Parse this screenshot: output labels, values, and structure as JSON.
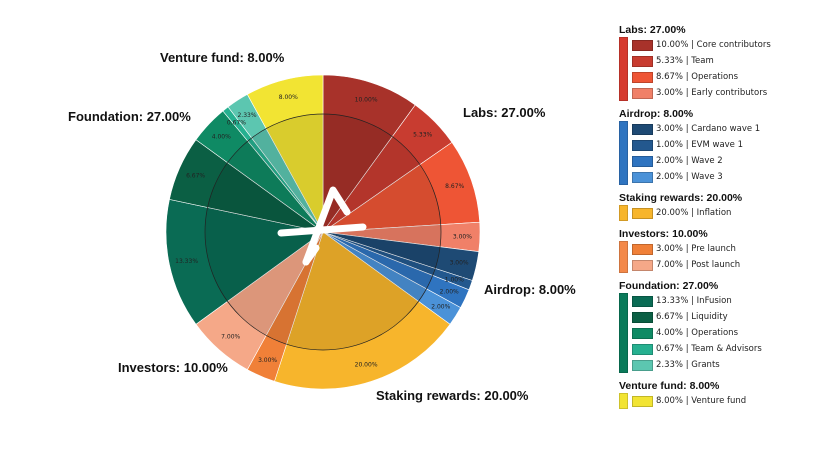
{
  "chart_data": {
    "type": "pie",
    "title": "",
    "groups": [
      {
        "name": "Labs",
        "label": "Labs: 27.00%",
        "value": 27.0,
        "color": "#d63a2f",
        "slices": [
          {
            "value": 10.0,
            "pct": "10.00%",
            "legend": "10.00% | Core contributors",
            "color": "#a8322a"
          },
          {
            "value": 5.33,
            "pct": "5.33%",
            "legend": "5.33% | Team",
            "color": "#c83c30"
          },
          {
            "value": 8.67,
            "pct": "8.67%",
            "legend": "8.67% | Operations",
            "color": "#ee5535"
          },
          {
            "value": 3.0,
            "pct": "3.00%",
            "legend": "3.00% | Early contributors",
            "color": "#f08068"
          }
        ]
      },
      {
        "name": "Airdrop",
        "label": "Airdrop: 8.00%",
        "value": 8.0,
        "color": "#2f74c0",
        "slices": [
          {
            "value": 3.0,
            "pct": "3.00%",
            "legend": "3.00% | Cardano wave 1",
            "color": "#1e4a74"
          },
          {
            "value": 1.0,
            "pct": "1.00%",
            "legend": "1.00% | EVM wave 1",
            "color": "#23588e"
          },
          {
            "value": 2.0,
            "pct": "2.00%",
            "legend": "2.00% | Wave 2",
            "color": "#2f74c0"
          },
          {
            "value": 2.0,
            "pct": "2.00%",
            "legend": "2.00% | Wave 3",
            "color": "#4b92d8"
          }
        ]
      },
      {
        "name": "Staking rewards",
        "label": "Staking rewards: 20.00%",
        "value": 20.0,
        "color": "#f7b52c",
        "slices": [
          {
            "value": 20.0,
            "pct": "20.00%",
            "legend": "20.00% | Inflation",
            "color": "#f7b52c"
          }
        ]
      },
      {
        "name": "Investors",
        "label": "Investors: 10.00%",
        "value": 10.0,
        "color": "#f3894a",
        "slices": [
          {
            "value": 3.0,
            "pct": "3.00%",
            "legend": "3.00% | Pre launch",
            "color": "#f08038"
          },
          {
            "value": 7.0,
            "pct": "7.00%",
            "legend": "7.00% | Post launch",
            "color": "#f5a888"
          }
        ]
      },
      {
        "name": "Foundation",
        "label": "Foundation: 27.00%",
        "value": 27.0,
        "color": "#0a7a5a",
        "slices": [
          {
            "value": 13.33,
            "pct": "13.33%",
            "legend": "13.33% | InFusion",
            "color": "#0a6b54"
          },
          {
            "value": 6.67,
            "pct": "6.67%",
            "legend": "6.67% | Liquidity",
            "color": "#0b5f44"
          },
          {
            "value": 4.0,
            "pct": "4.00%",
            "legend": "4.00% | Operations",
            "color": "#0f8a64"
          },
          {
            "value": 0.67,
            "pct": "0.67%",
            "legend": "0.67% | Team & Advisors",
            "color": "#26b090"
          },
          {
            "value": 2.33,
            "pct": "2.33%",
            "legend": "2.33% | Grants",
            "color": "#5cc6b0"
          }
        ]
      },
      {
        "name": "Venture fund",
        "label": "Venture fund: 8.00%",
        "value": 8.0,
        "color": "#f2e433",
        "slices": [
          {
            "value": 8.0,
            "pct": "8.00%",
            "legend": "8.00% | Venture fund",
            "color": "#f2e433"
          }
        ]
      }
    ]
  }
}
